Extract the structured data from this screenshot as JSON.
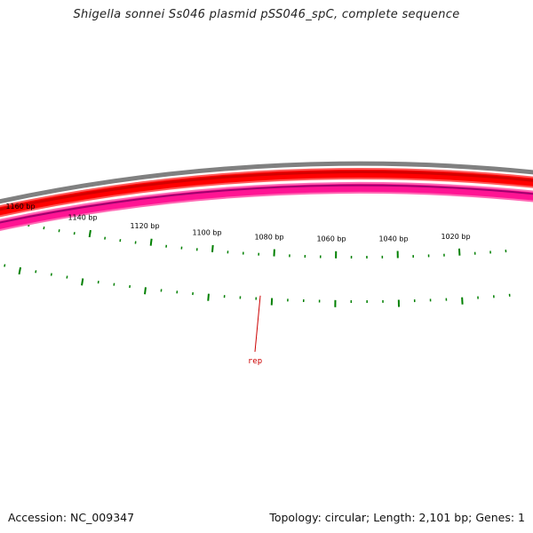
{
  "title": "Shigella sonnei Ss046 plasmid pSS046_spC, complete sequence",
  "footer": {
    "accession": "Accession: NC_009347",
    "summary": "Topology: circular; Length: 2,101 bp; Genes: 1"
  },
  "tick_labels": [
    "1020 bp",
    "1040 bp",
    "1060 bp",
    "1080 bp",
    "1100 bp",
    "1120 bp",
    "1140 bp",
    "1160 bp"
  ],
  "gene": {
    "name": "rep"
  },
  "colors": {
    "backbone": "#808080",
    "forward_track": "#ff0000",
    "reverse_track": "#ff1493",
    "ticks": "#008000",
    "gene_label": "#cc0000"
  }
}
